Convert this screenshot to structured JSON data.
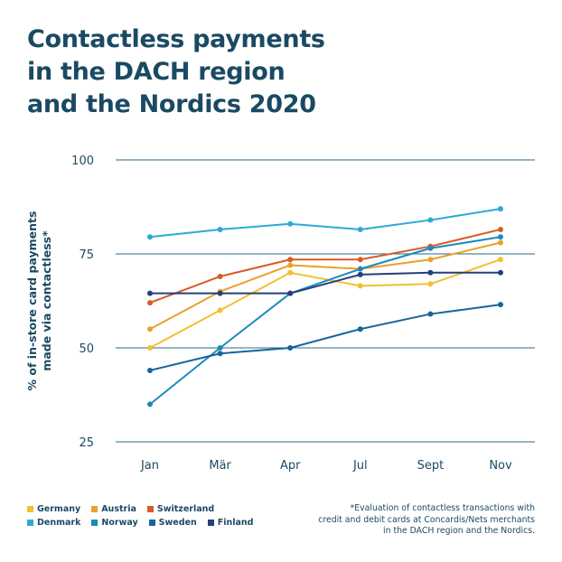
{
  "title_lines": [
    "Contactless payments",
    "in the DACH region",
    "and the Nordics 2020"
  ],
  "footnote_lines": [
    "*Evaluation of contactless transactions with",
    "credit and debit cards at Concardis/Nets merchants",
    "in the DACH region and the Nordics."
  ],
  "colors": {
    "text": "#1a4a63",
    "grid": "#2a6a87"
  },
  "chart_data": {
    "type": "line",
    "title": "Contactless payments in the DACH region and the Nordics 2020",
    "ylabel_lines": [
      "% of in-store card payments",
      "made via contactless*"
    ],
    "xlabel": "",
    "categories": [
      "Jan",
      "Mär",
      "Apr",
      "Jul",
      "Sept",
      "Nov"
    ],
    "yticks": [
      25,
      50,
      75,
      100
    ],
    "ylim": [
      25,
      100
    ],
    "grid": true,
    "legend_position": "bottom-left",
    "series": [
      {
        "name": "Germany",
        "color": "#f2c12e",
        "values": [
          50,
          60,
          70,
          66.5,
          67,
          73.5
        ]
      },
      {
        "name": "Austria",
        "color": "#e9a12a",
        "values": [
          55,
          65,
          72,
          71,
          73.5,
          78
        ]
      },
      {
        "name": "Switzerland",
        "color": "#d95b26",
        "values": [
          62,
          69,
          73.5,
          73.5,
          77,
          81.5
        ]
      },
      {
        "name": "Denmark",
        "color": "#2fa8d8",
        "values": [
          79.5,
          81.5,
          83,
          81.5,
          84,
          87
        ]
      },
      {
        "name": "Norway",
        "color": "#1b8bbd",
        "values": [
          35,
          50,
          64.5,
          71,
          76.5,
          79.5
        ]
      },
      {
        "name": "Sweden",
        "color": "#14659e",
        "values": [
          44,
          48.5,
          50,
          55,
          59,
          61.5
        ]
      },
      {
        "name": "Finland",
        "color": "#263f7a",
        "values": [
          64.5,
          64.5,
          64.5,
          69.5,
          70,
          70
        ]
      }
    ]
  }
}
